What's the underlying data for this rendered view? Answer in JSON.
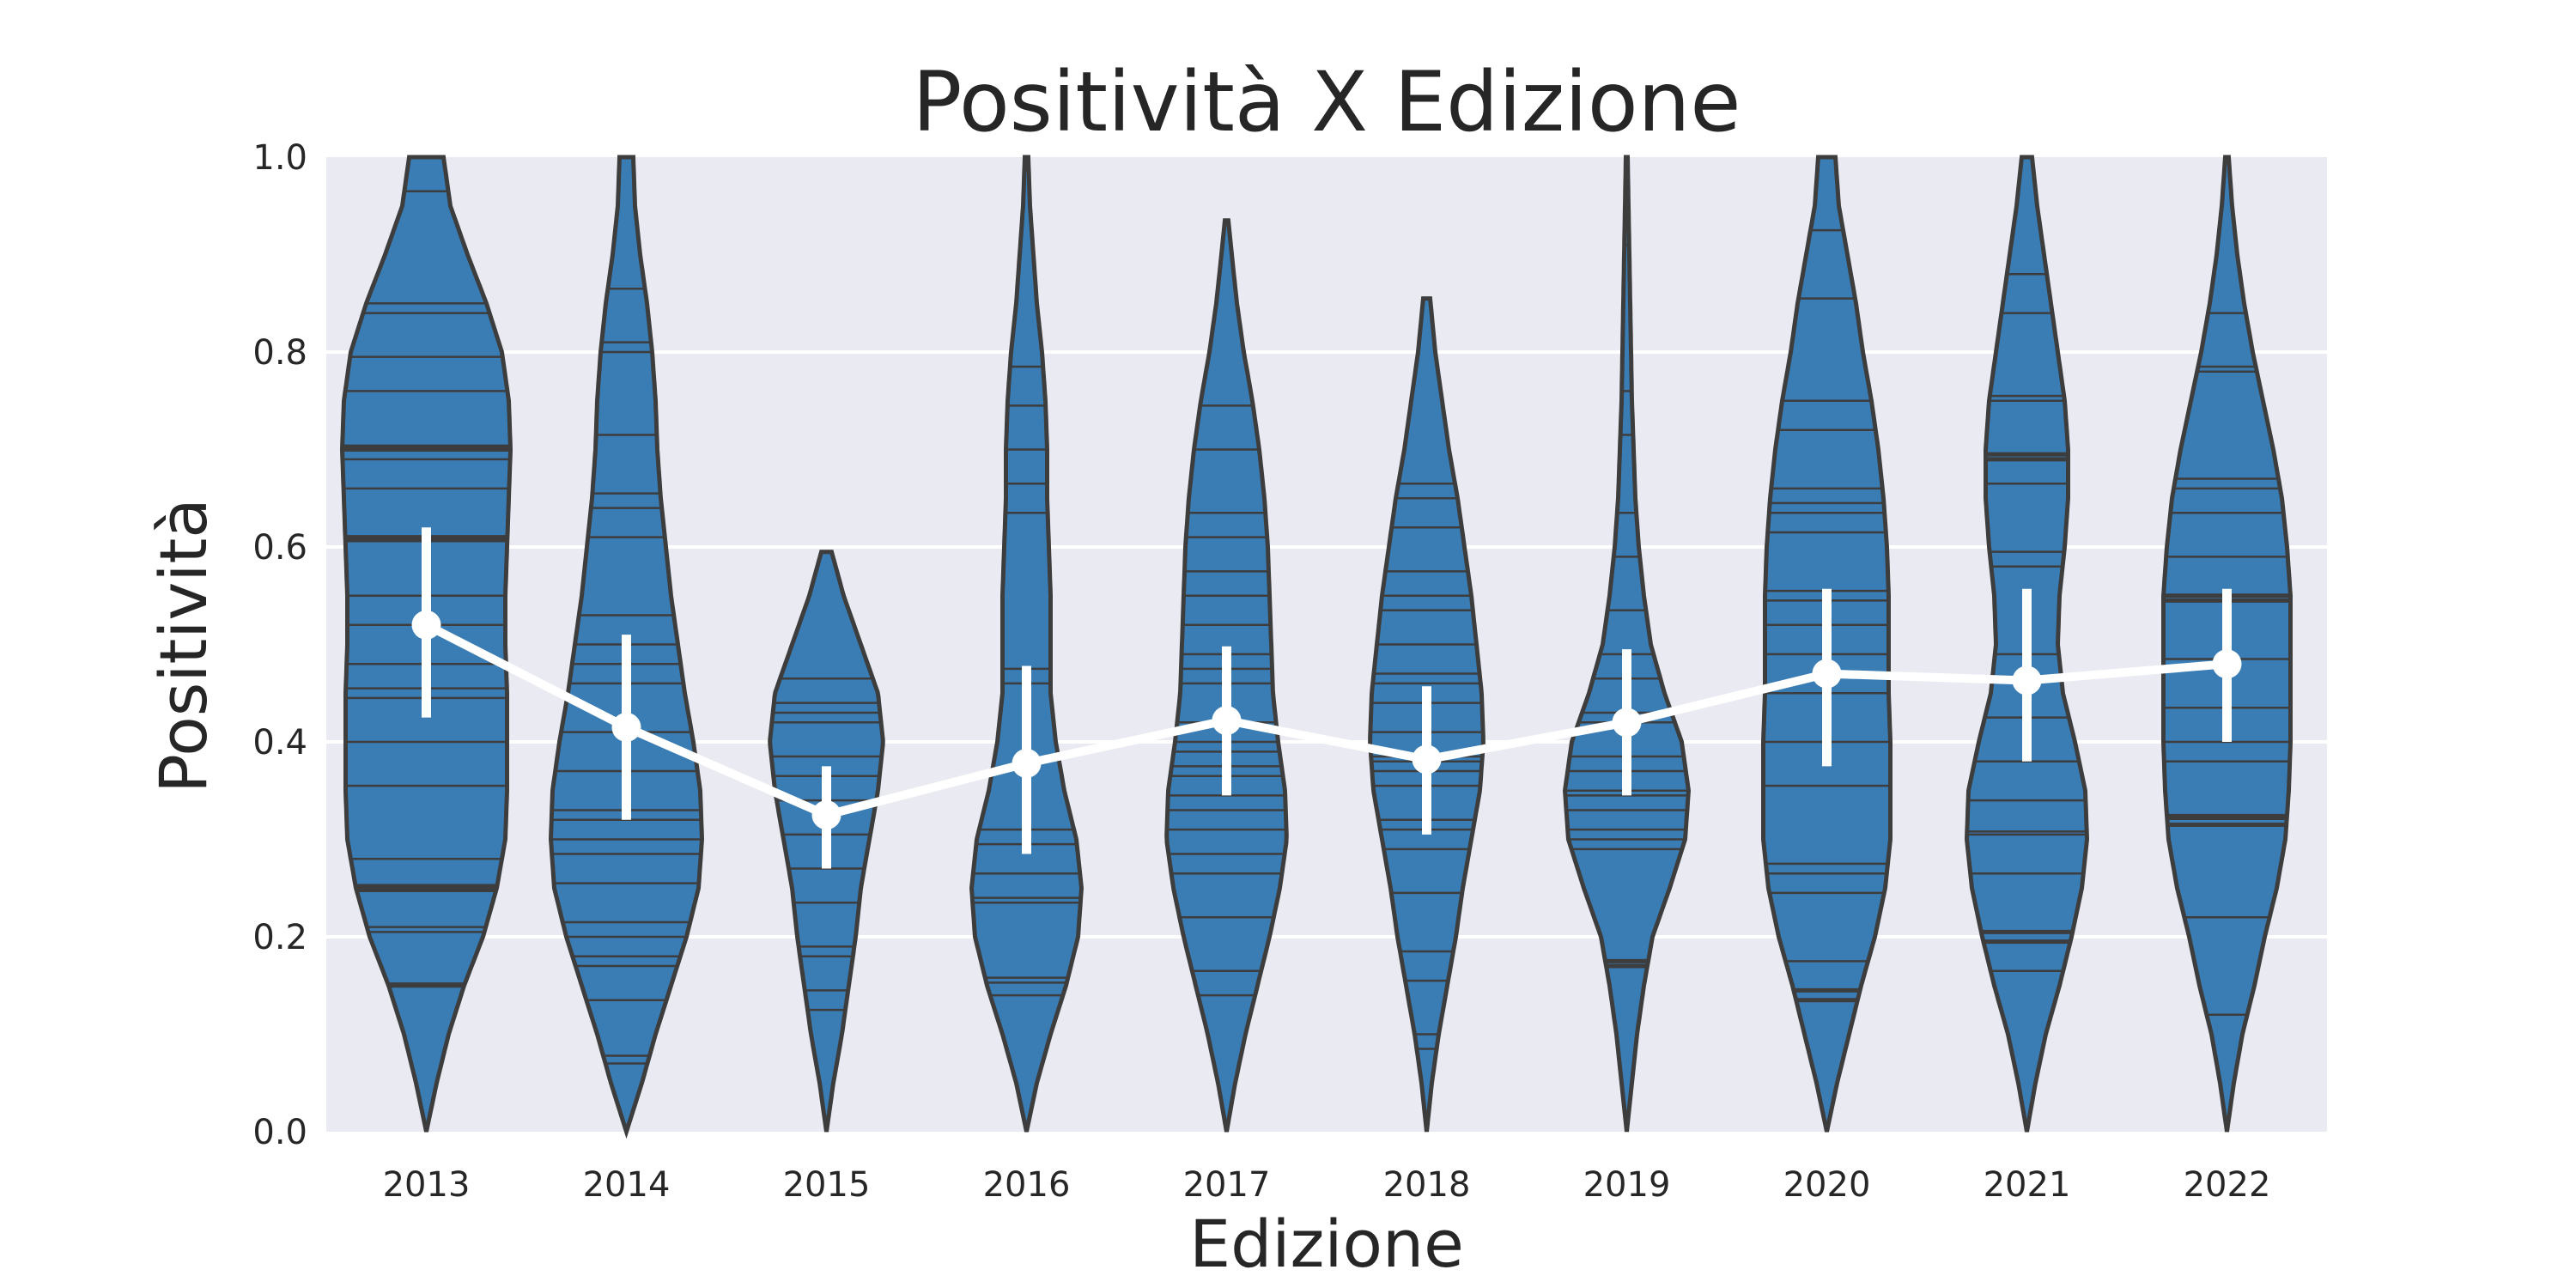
{
  "chart_data": {
    "type": "violin",
    "title": "Positività X Edizione",
    "xlabel": "Edizione",
    "ylabel": "Positività",
    "ylim": [
      0,
      1
    ],
    "yticks": [
      "0.0",
      "0.2",
      "0.4",
      "0.6",
      "0.8",
      "1.0"
    ],
    "categories": [
      "2013",
      "2014",
      "2015",
      "2016",
      "2017",
      "2018",
      "2019",
      "2020",
      "2021",
      "2022"
    ],
    "grid": true,
    "colors": {
      "background": "#eaeaf2",
      "violin_fill": "#3a7db5",
      "violin_edge": "#3d3d3d",
      "mean_line": "#ffffff"
    },
    "mean": [
      0.52,
      0.415,
      0.325,
      0.378,
      0.422,
      0.382,
      0.42,
      0.47,
      0.463,
      0.48
    ],
    "ci": [
      [
        0.425,
        0.62
      ],
      [
        0.32,
        0.51
      ],
      [
        0.27,
        0.375
      ],
      [
        0.285,
        0.478
      ],
      [
        0.345,
        0.498
      ],
      [
        0.305,
        0.457
      ],
      [
        0.345,
        0.495
      ],
      [
        0.375,
        0.557
      ],
      [
        0.38,
        0.557
      ],
      [
        0.4,
        0.557
      ]
    ],
    "violins": [
      {
        "year": "2013",
        "ymin": 0.0,
        "ymax": 1.0,
        "width_profile": [
          [
            0.0,
            0.0
          ],
          [
            0.05,
            0.06
          ],
          [
            0.1,
            0.13
          ],
          [
            0.15,
            0.22
          ],
          [
            0.2,
            0.33
          ],
          [
            0.25,
            0.41
          ],
          [
            0.3,
            0.46
          ],
          [
            0.35,
            0.47
          ],
          [
            0.4,
            0.47
          ],
          [
            0.45,
            0.47
          ],
          [
            0.5,
            0.46
          ],
          [
            0.55,
            0.46
          ],
          [
            0.6,
            0.47
          ],
          [
            0.65,
            0.48
          ],
          [
            0.7,
            0.49
          ],
          [
            0.75,
            0.48
          ],
          [
            0.8,
            0.44
          ],
          [
            0.85,
            0.35
          ],
          [
            0.9,
            0.24
          ],
          [
            0.95,
            0.14
          ],
          [
            1.0,
            0.1
          ]
        ],
        "points": [
          0.15,
          0.151,
          0.205,
          0.21,
          0.248,
          0.25,
          0.252,
          0.28,
          0.355,
          0.4,
          0.445,
          0.455,
          0.48,
          0.52,
          0.55,
          0.607,
          0.61,
          0.66,
          0.69,
          0.7,
          0.703,
          0.76,
          0.795,
          0.84,
          0.85,
          0.965
        ]
      },
      {
        "year": "2014",
        "ymin": 0.0,
        "ymax": 1.0,
        "width_profile": [
          [
            0.0,
            0.0
          ],
          [
            0.05,
            0.09
          ],
          [
            0.1,
            0.17
          ],
          [
            0.15,
            0.26
          ],
          [
            0.2,
            0.35
          ],
          [
            0.25,
            0.42
          ],
          [
            0.3,
            0.44
          ],
          [
            0.35,
            0.43
          ],
          [
            0.4,
            0.39
          ],
          [
            0.45,
            0.34
          ],
          [
            0.5,
            0.3
          ],
          [
            0.55,
            0.26
          ],
          [
            0.6,
            0.23
          ],
          [
            0.65,
            0.2
          ],
          [
            0.7,
            0.18
          ],
          [
            0.75,
            0.17
          ],
          [
            0.8,
            0.15
          ],
          [
            0.85,
            0.12
          ],
          [
            0.9,
            0.08
          ],
          [
            0.95,
            0.05
          ],
          [
            1.0,
            0.04
          ]
        ],
        "points": [
          0.07,
          0.078,
          0.135,
          0.17,
          0.18,
          0.2,
          0.215,
          0.255,
          0.285,
          0.3,
          0.32,
          0.33,
          0.37,
          0.41,
          0.46,
          0.48,
          0.5,
          0.53,
          0.61,
          0.64,
          0.655,
          0.715,
          0.8,
          0.81,
          0.865
        ]
      },
      {
        "year": "2015",
        "ymin": 0.0,
        "ymax": 0.595,
        "width_profile": [
          [
            0.0,
            0.0
          ],
          [
            0.05,
            0.04
          ],
          [
            0.1,
            0.09
          ],
          [
            0.15,
            0.13
          ],
          [
            0.2,
            0.17
          ],
          [
            0.25,
            0.2
          ],
          [
            0.3,
            0.25
          ],
          [
            0.35,
            0.3
          ],
          [
            0.4,
            0.33
          ],
          [
            0.45,
            0.3
          ],
          [
            0.5,
            0.2
          ],
          [
            0.55,
            0.1
          ],
          [
            0.595,
            0.03
          ]
        ],
        "points": [
          0.125,
          0.145,
          0.18,
          0.19,
          0.235,
          0.27,
          0.305,
          0.34,
          0.365,
          0.385,
          0.42,
          0.43,
          0.44,
          0.465
        ]
      },
      {
        "year": "2016",
        "ymin": 0.0,
        "ymax": 1.0,
        "width_profile": [
          [
            0.0,
            0.0
          ],
          [
            0.05,
            0.06
          ],
          [
            0.1,
            0.14
          ],
          [
            0.15,
            0.23
          ],
          [
            0.2,
            0.3
          ],
          [
            0.25,
            0.32
          ],
          [
            0.3,
            0.29
          ],
          [
            0.35,
            0.22
          ],
          [
            0.4,
            0.17
          ],
          [
            0.45,
            0.14
          ],
          [
            0.5,
            0.14
          ],
          [
            0.55,
            0.14
          ],
          [
            0.6,
            0.13
          ],
          [
            0.65,
            0.12
          ],
          [
            0.7,
            0.12
          ],
          [
            0.75,
            0.11
          ],
          [
            0.8,
            0.09
          ],
          [
            0.85,
            0.06
          ],
          [
            0.9,
            0.04
          ],
          [
            0.95,
            0.02
          ],
          [
            1.0,
            0.01
          ]
        ],
        "points": [
          0.14,
          0.153,
          0.158,
          0.235,
          0.24,
          0.265,
          0.295,
          0.31,
          0.46,
          0.475,
          0.635,
          0.665,
          0.7,
          0.745,
          0.785
        ]
      },
      {
        "year": "2017",
        "ymin": 0.0,
        "ymax": 0.935,
        "width_profile": [
          [
            0.0,
            0.0
          ],
          [
            0.05,
            0.05
          ],
          [
            0.1,
            0.11
          ],
          [
            0.15,
            0.18
          ],
          [
            0.2,
            0.25
          ],
          [
            0.25,
            0.31
          ],
          [
            0.3,
            0.35
          ],
          [
            0.35,
            0.34
          ],
          [
            0.4,
            0.3
          ],
          [
            0.45,
            0.27
          ],
          [
            0.5,
            0.26
          ],
          [
            0.55,
            0.25
          ],
          [
            0.6,
            0.24
          ],
          [
            0.65,
            0.22
          ],
          [
            0.7,
            0.19
          ],
          [
            0.75,
            0.15
          ],
          [
            0.8,
            0.1
          ],
          [
            0.85,
            0.06
          ],
          [
            0.9,
            0.03
          ],
          [
            0.935,
            0.01
          ]
        ],
        "points": [
          0.14,
          0.165,
          0.22,
          0.265,
          0.285,
          0.31,
          0.33,
          0.345,
          0.365,
          0.375,
          0.39,
          0.4,
          0.42,
          0.46,
          0.475,
          0.49,
          0.52,
          0.55,
          0.575,
          0.61,
          0.635,
          0.7,
          0.745
        ]
      },
      {
        "year": "2018",
        "ymin": 0.0,
        "ymax": 0.855,
        "width_profile": [
          [
            0.0,
            0.0
          ],
          [
            0.05,
            0.03
          ],
          [
            0.1,
            0.07
          ],
          [
            0.15,
            0.12
          ],
          [
            0.2,
            0.17
          ],
          [
            0.25,
            0.21
          ],
          [
            0.3,
            0.26
          ],
          [
            0.35,
            0.31
          ],
          [
            0.4,
            0.33
          ],
          [
            0.45,
            0.32
          ],
          [
            0.5,
            0.29
          ],
          [
            0.55,
            0.26
          ],
          [
            0.6,
            0.22
          ],
          [
            0.65,
            0.18
          ],
          [
            0.7,
            0.13
          ],
          [
            0.75,
            0.09
          ],
          [
            0.8,
            0.05
          ],
          [
            0.855,
            0.02
          ]
        ],
        "points": [
          0.085,
          0.1,
          0.155,
          0.185,
          0.245,
          0.29,
          0.31,
          0.32,
          0.355,
          0.37,
          0.38,
          0.385,
          0.41,
          0.44,
          0.46,
          0.47,
          0.5,
          0.535,
          0.55,
          0.575,
          0.62,
          0.65,
          0.665
        ]
      },
      {
        "year": "2019",
        "ymin": 0.0,
        "ymax": 1.0,
        "width_profile": [
          [
            0.0,
            0.0
          ],
          [
            0.05,
            0.03
          ],
          [
            0.1,
            0.06
          ],
          [
            0.15,
            0.1
          ],
          [
            0.2,
            0.15
          ],
          [
            0.25,
            0.25
          ],
          [
            0.3,
            0.34
          ],
          [
            0.35,
            0.36
          ],
          [
            0.4,
            0.32
          ],
          [
            0.45,
            0.22
          ],
          [
            0.5,
            0.14
          ],
          [
            0.55,
            0.1
          ],
          [
            0.6,
            0.07
          ],
          [
            0.65,
            0.05
          ],
          [
            0.7,
            0.04
          ],
          [
            0.75,
            0.03
          ],
          [
            0.8,
            0.025
          ],
          [
            0.85,
            0.02
          ],
          [
            0.9,
            0.015
          ],
          [
            0.95,
            0.01
          ],
          [
            1.0,
            0.005
          ]
        ],
        "points": [
          0.17,
          0.175,
          0.29,
          0.3,
          0.31,
          0.33,
          0.345,
          0.35,
          0.37,
          0.385,
          0.42,
          0.43,
          0.465,
          0.49,
          0.535,
          0.59,
          0.635,
          0.715,
          0.76,
          0.91
        ]
      },
      {
        "year": "2020",
        "ymin": 0.0,
        "ymax": 1.0,
        "width_profile": [
          [
            0.0,
            0.0
          ],
          [
            0.05,
            0.06
          ],
          [
            0.1,
            0.13
          ],
          [
            0.15,
            0.2
          ],
          [
            0.2,
            0.28
          ],
          [
            0.25,
            0.34
          ],
          [
            0.3,
            0.37
          ],
          [
            0.35,
            0.37
          ],
          [
            0.4,
            0.37
          ],
          [
            0.45,
            0.36
          ],
          [
            0.5,
            0.36
          ],
          [
            0.55,
            0.36
          ],
          [
            0.6,
            0.35
          ],
          [
            0.65,
            0.33
          ],
          [
            0.7,
            0.3
          ],
          [
            0.75,
            0.26
          ],
          [
            0.8,
            0.21
          ],
          [
            0.85,
            0.17
          ],
          [
            0.9,
            0.12
          ],
          [
            0.95,
            0.07
          ],
          [
            1.0,
            0.05
          ]
        ],
        "points": [
          0.135,
          0.145,
          0.175,
          0.245,
          0.265,
          0.275,
          0.355,
          0.4,
          0.45,
          0.49,
          0.52,
          0.545,
          0.555,
          0.615,
          0.635,
          0.645,
          0.66,
          0.72,
          0.75,
          0.855,
          0.925
        ]
      },
      {
        "year": "2021",
        "ymin": 0.0,
        "ymax": 1.0,
        "width_profile": [
          [
            0.0,
            0.0
          ],
          [
            0.05,
            0.05
          ],
          [
            0.1,
            0.11
          ],
          [
            0.15,
            0.19
          ],
          [
            0.2,
            0.26
          ],
          [
            0.25,
            0.32
          ],
          [
            0.3,
            0.35
          ],
          [
            0.35,
            0.34
          ],
          [
            0.4,
            0.28
          ],
          [
            0.45,
            0.21
          ],
          [
            0.5,
            0.18
          ],
          [
            0.55,
            0.19
          ],
          [
            0.6,
            0.22
          ],
          [
            0.65,
            0.24
          ],
          [
            0.7,
            0.24
          ],
          [
            0.75,
            0.22
          ],
          [
            0.8,
            0.18
          ],
          [
            0.85,
            0.14
          ],
          [
            0.9,
            0.1
          ],
          [
            0.95,
            0.06
          ],
          [
            1.0,
            0.03
          ]
        ],
        "points": [
          0.165,
          0.195,
          0.205,
          0.265,
          0.305,
          0.308,
          0.34,
          0.38,
          0.425,
          0.49,
          0.58,
          0.595,
          0.665,
          0.69,
          0.695,
          0.75,
          0.755,
          0.84,
          0.88
        ]
      },
      {
        "year": "2022",
        "ymin": 0.0,
        "ymax": 1.0,
        "width_profile": [
          [
            0.0,
            0.0
          ],
          [
            0.05,
            0.04
          ],
          [
            0.1,
            0.09
          ],
          [
            0.15,
            0.16
          ],
          [
            0.2,
            0.22
          ],
          [
            0.25,
            0.29
          ],
          [
            0.3,
            0.34
          ],
          [
            0.35,
            0.36
          ],
          [
            0.4,
            0.37
          ],
          [
            0.45,
            0.37
          ],
          [
            0.5,
            0.37
          ],
          [
            0.55,
            0.37
          ],
          [
            0.6,
            0.35
          ],
          [
            0.65,
            0.32
          ],
          [
            0.7,
            0.27
          ],
          [
            0.75,
            0.21
          ],
          [
            0.8,
            0.15
          ],
          [
            0.85,
            0.1
          ],
          [
            0.9,
            0.06
          ],
          [
            0.95,
            0.03
          ],
          [
            1.0,
            0.01
          ]
        ],
        "points": [
          0.12,
          0.22,
          0.315,
          0.322,
          0.325,
          0.38,
          0.4,
          0.435,
          0.485,
          0.545,
          0.55,
          0.59,
          0.635,
          0.66,
          0.67,
          0.78,
          0.785,
          0.84
        ]
      }
    ]
  }
}
